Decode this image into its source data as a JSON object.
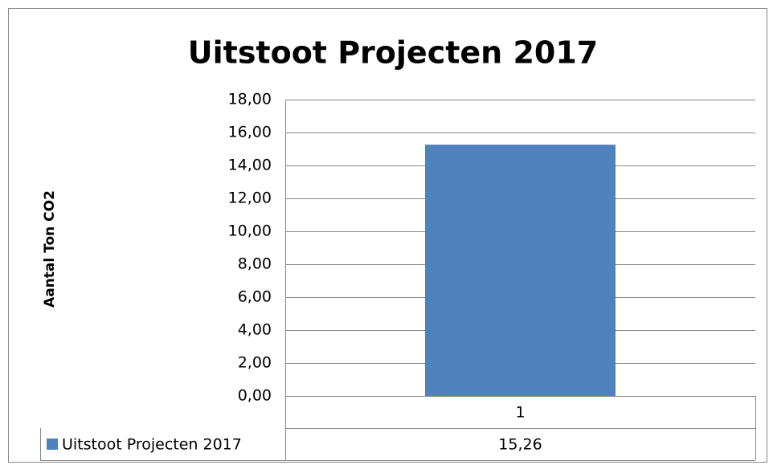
{
  "chart_data": {
    "type": "bar",
    "title": "Uitstoot Projecten 2017",
    "y_label": "Aantal Ton CO2",
    "categories": [
      "1"
    ],
    "series": [
      {
        "name": "Uitstoot Projecten 2017",
        "color": "#4f81bd",
        "values": [
          15.26
        ],
        "value_labels": [
          "15,26"
        ]
      }
    ],
    "ylim": [
      0,
      18
    ],
    "yticks": [
      {
        "value": 0,
        "label": "0,00"
      },
      {
        "value": 2,
        "label": "2,00"
      },
      {
        "value": 4,
        "label": "4,00"
      },
      {
        "value": 6,
        "label": "6,00"
      },
      {
        "value": 8,
        "label": "8,00"
      },
      {
        "value": 10,
        "label": "10,00"
      },
      {
        "value": 12,
        "label": "12,00"
      },
      {
        "value": 14,
        "label": "14,00"
      },
      {
        "value": 16,
        "label": "16,00"
      },
      {
        "value": 18,
        "label": "18,00"
      }
    ],
    "grid": true
  }
}
